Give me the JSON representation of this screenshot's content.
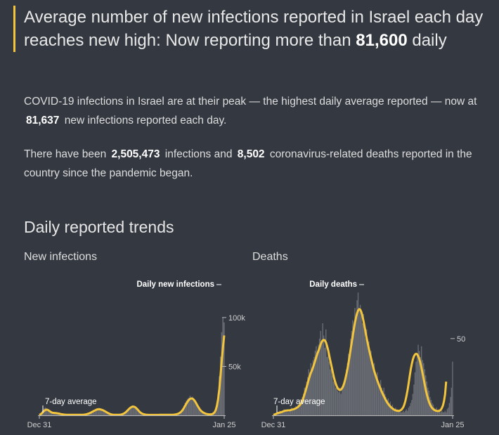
{
  "headline": {
    "text": "Average number of new infections reported in Israel each day reaches new high: Now reporting more than ",
    "highlight": "81,600",
    "suffix": " daily"
  },
  "summary": {
    "p1_start": "COVID-19 infections in Israel are at their peak — the highest daily average reported — now at",
    "p1_value": "81,637",
    "p1_end": "new infections reported each day.",
    "p2_start": "There have been",
    "p2_infections": "2,505,473",
    "p2_mid": "infections and",
    "p2_deaths": "8,502",
    "p2_end": "coronavirus-related deaths reported in the country since the pandemic began."
  },
  "section_title": "Daily reported trends",
  "colors": {
    "accent": "#f2c53d",
    "bars": "#7c7f86",
    "background": "#343841",
    "axis": "#bbbbbb"
  },
  "chart_data": [
    {
      "type": "bar",
      "title": "New infections",
      "series_label": "Daily new infections",
      "average_label": "7-day average",
      "x_start": "Dec 31",
      "x_end": "Jan 25",
      "y_ticks": [
        {
          "value": 100000,
          "label": "100k"
        },
        {
          "value": 50000,
          "label": "50k"
        }
      ],
      "ylim": [
        0,
        120000
      ],
      "daily": [
        1,
        2,
        3,
        6,
        7,
        8,
        7,
        5,
        4,
        3,
        2,
        3,
        3,
        2,
        2,
        2,
        2,
        1,
        1,
        1,
        1,
        0.5,
        0.5,
        0.5,
        0.5,
        0.5,
        0.5,
        0.5,
        0.5,
        0.5,
        0.5,
        0.5,
        0.5,
        0.5,
        0.5,
        0.5,
        0.6,
        0.8,
        1,
        1.3,
        1.7,
        2.2,
        2.8,
        3.5,
        4.2,
        5,
        5.5,
        6.5,
        6,
        7,
        5.5,
        6,
        5,
        4.5,
        3.5,
        2.8,
        2,
        1.5,
        1,
        0.8,
        0.6,
        0.5,
        0.5,
        0.5,
        0.5,
        0.5,
        0.6,
        0.8,
        1.2,
        1.8,
        2.6,
        3.8,
        5.5,
        6.5,
        8,
        9,
        9.5,
        10,
        9,
        8,
        6.5,
        5,
        3.5,
        2.5,
        1.8,
        1.4,
        1,
        0.7,
        0.5,
        0.5,
        0.4,
        0.4,
        0.4,
        0.4,
        0.4,
        0.4,
        0.4,
        0.4,
        0.5,
        0.5,
        0.5,
        0.5,
        0.5,
        0.5,
        0.5,
        0.5,
        0.5,
        0.5,
        0.5,
        0.6,
        0.7,
        0.8,
        1,
        1.3,
        1.8,
        2.5,
        3.5,
        5,
        7,
        10,
        13,
        15,
        17,
        18,
        20,
        17,
        19,
        16,
        14,
        11,
        9,
        7,
        5,
        4,
        3,
        2.5,
        2,
        1.5,
        1.2,
        1,
        1,
        1,
        1,
        1.5,
        3,
        6,
        12,
        22,
        40,
        60,
        85,
        100,
        95
      ],
      "average": [
        0.5,
        1,
        2,
        3.5,
        4.5,
        5.5,
        5.8,
        5.5,
        4.7,
        3.8,
        3,
        2.6,
        2.5,
        2.4,
        2.2,
        2,
        1.8,
        1.5,
        1.2,
        1,
        0.8,
        0.7,
        0.6,
        0.5,
        0.5,
        0.5,
        0.5,
        0.5,
        0.5,
        0.5,
        0.5,
        0.5,
        0.5,
        0.5,
        0.5,
        0.5,
        0.55,
        0.7,
        0.9,
        1.2,
        1.6,
        2,
        2.6,
        3.2,
        3.9,
        4.6,
        5.2,
        5.8,
        6.1,
        6.3,
        6.1,
        5.8,
        5.4,
        4.8,
        4.1,
        3.4,
        2.6,
        2,
        1.4,
        1,
        0.7,
        0.6,
        0.5,
        0.5,
        0.5,
        0.5,
        0.55,
        0.7,
        1,
        1.5,
        2.2,
        3.1,
        4.3,
        5.6,
        6.8,
        7.9,
        8.6,
        9,
        8.8,
        8.1,
        7,
        5.6,
        4.2,
        3,
        2.1,
        1.5,
        1.1,
        0.8,
        0.6,
        0.5,
        0.45,
        0.4,
        0.4,
        0.4,
        0.4,
        0.4,
        0.4,
        0.4,
        0.45,
        0.5,
        0.5,
        0.5,
        0.5,
        0.5,
        0.5,
        0.5,
        0.5,
        0.5,
        0.5,
        0.55,
        0.6,
        0.7,
        0.9,
        1.2,
        1.6,
        2.2,
        3,
        4.2,
        5.8,
        7.8,
        10,
        12.3,
        14.2,
        15.8,
        16.9,
        17.3,
        17,
        16,
        14.4,
        12.3,
        10,
        7.9,
        6,
        4.6,
        3.5,
        2.7,
        2.1,
        1.6,
        1.3,
        1.1,
        1,
        1,
        1.2,
        1.8,
        3,
        5.4,
        9.6,
        16.5,
        27,
        41,
        56,
        70,
        81.6
      ]
    },
    {
      "type": "bar",
      "title": "Deaths",
      "series_label": "Daily deaths",
      "average_label": "7-day average",
      "x_start": "Dec 31",
      "x_end": "Jan 25",
      "y_ticks": [
        {
          "value": 50,
          "label": "50"
        }
      ],
      "ylim": [
        0,
        87
      ],
      "daily": [
        0,
        0,
        1,
        1,
        2,
        1,
        3,
        2,
        2,
        3,
        4,
        3,
        3,
        4,
        2,
        3,
        4,
        5,
        3,
        4,
        5,
        6,
        4,
        7,
        6,
        9,
        8,
        12,
        14,
        18,
        16,
        22,
        25,
        30,
        28,
        34,
        30,
        36,
        38,
        42,
        45,
        40,
        46,
        50,
        55,
        48,
        60,
        52,
        44,
        56,
        38,
        42,
        35,
        30,
        33,
        26,
        22,
        24,
        18,
        20,
        16,
        15,
        18,
        14,
        17,
        20,
        22,
        25,
        30,
        34,
        40,
        38,
        50,
        55,
        62,
        58,
        70,
        65,
        75,
        80,
        70,
        72,
        65,
        60,
        66,
        55,
        50,
        56,
        45,
        48,
        40,
        42,
        36,
        30,
        34,
        28,
        25,
        28,
        22,
        20,
        23,
        18,
        16,
        18,
        14,
        12,
        10,
        11,
        8,
        9,
        6,
        7,
        5,
        4,
        5,
        3,
        4,
        3,
        3,
        2,
        2,
        3,
        2,
        3,
        4,
        3,
        5,
        6,
        8,
        10,
        14,
        20,
        28,
        35,
        40,
        46,
        42,
        38,
        45,
        36,
        34,
        30,
        26,
        22,
        18,
        16,
        12,
        10,
        8,
        7,
        5,
        4,
        5,
        3,
        4,
        3,
        2,
        3,
        2,
        2,
        3,
        2,
        4,
        5,
        8,
        12,
        18,
        35
      ],
      "average": [
        0.3,
        0.5,
        0.8,
        1.1,
        1.4,
        1.6,
        1.8,
        2,
        2.2,
        2.5,
        2.8,
        3,
        3.1,
        3.2,
        3.2,
        3.3,
        3.4,
        3.6,
        3.8,
        4,
        4.3,
        4.6,
        5,
        5.5,
        6.2,
        7,
        8.1,
        9.6,
        11.5,
        13.8,
        16,
        18.4,
        21,
        23.6,
        25.8,
        27.8,
        29.5,
        31.4,
        33.5,
        35.8,
        38.1,
        40.2,
        42,
        44,
        46.3,
        47.8,
        48.8,
        49.2,
        48.8,
        47.5,
        45.3,
        42.5,
        39.2,
        35.8,
        32.4,
        29.2,
        26,
        23.2,
        20.8,
        19,
        17.6,
        16.8,
        16.5,
        16.8,
        17.6,
        19,
        21,
        23.6,
        26.7,
        30.2,
        34.2,
        38.5,
        43,
        47.6,
        52,
        56.3,
        60.3,
        63.8,
        66.6,
        68.4,
        69.2,
        68.8,
        67.2,
        64.6,
        61.3,
        57.6,
        53.8,
        50.1,
        46.6,
        43.3,
        40.2,
        37.2,
        34.2,
        31.4,
        28.8,
        26.5,
        24.4,
        22.4,
        20.5,
        18.7,
        17,
        15.3,
        13.8,
        12.3,
        10.9,
        9.6,
        8.4,
        7.4,
        6.5,
        5.7,
        5,
        4.4,
        3.9,
        3.5,
        3.2,
        3,
        2.9,
        2.9,
        3.1,
        3.5,
        4.2,
        5.3,
        7,
        9.4,
        12.6,
        16.4,
        20.8,
        25.4,
        29.8,
        33.6,
        36.5,
        38.5,
        39.7,
        40.1,
        39.8,
        38.6,
        36.6,
        34,
        30.9,
        27.5,
        23.8,
        20.1,
        16.6,
        13.5,
        10.9,
        8.8,
        7,
        5.7,
        4.7,
        4,
        3.5,
        3.1,
        2.9,
        2.8,
        2.8,
        3,
        3.6,
        4.7,
        6.5,
        9.4,
        13.8,
        22
      ]
    }
  ]
}
